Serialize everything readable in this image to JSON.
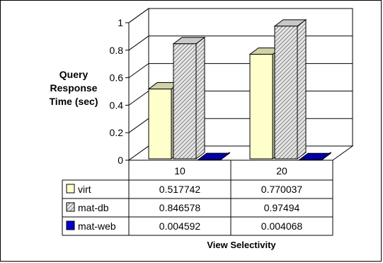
{
  "chart_data": {
    "type": "bar",
    "title": "",
    "xlabel": "View Selectivity",
    "ylabel": "Query Response Time (sec)",
    "categories": [
      "10",
      "20"
    ],
    "ylim": [
      0,
      1
    ],
    "yticks": [
      "0",
      "0.2",
      "0.4",
      "0.6",
      "0.8",
      "1"
    ],
    "grid": true,
    "legend": "data-table rows",
    "series": [
      {
        "name": "virt",
        "values": [
          0.517742,
          0.770037
        ],
        "value_labels": [
          "0.517742",
          "0.770037"
        ],
        "color": "#ffffcc",
        "pattern": "solid"
      },
      {
        "name": "mat-db",
        "values": [
          0.846578,
          0.97494
        ],
        "value_labels": [
          "0.846578",
          "0.97494"
        ],
        "color": "#d0d0d0",
        "pattern": "diagonal-hatch"
      },
      {
        "name": "mat-web",
        "values": [
          0.004592,
          0.004068
        ],
        "value_labels": [
          "0.004592",
          "0.004068"
        ],
        "color": "#0000cc",
        "pattern": "solid"
      }
    ]
  }
}
